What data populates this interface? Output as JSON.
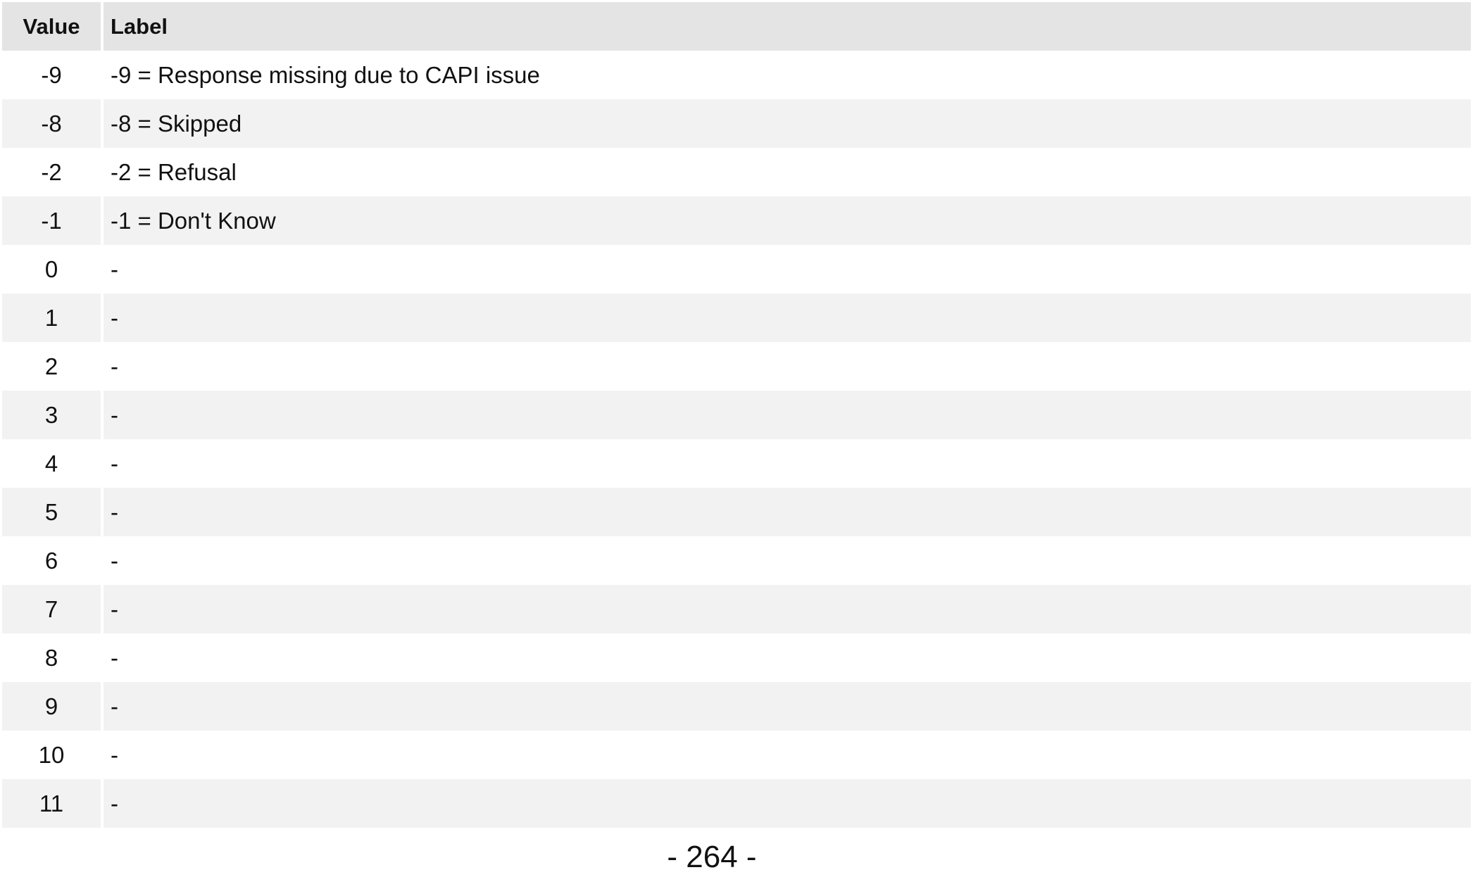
{
  "table": {
    "headers": {
      "value": "Value",
      "label": "Label"
    },
    "rows": [
      {
        "value": "-9",
        "label": "-9 = Response missing due to CAPI issue"
      },
      {
        "value": "-8",
        "label": "-8 = Skipped"
      },
      {
        "value": "-2",
        "label": "-2 = Refusal"
      },
      {
        "value": "-1",
        "label": "-1 = Don't Know"
      },
      {
        "value": "0",
        "label": "-"
      },
      {
        "value": "1",
        "label": "-"
      },
      {
        "value": "2",
        "label": "-"
      },
      {
        "value": "3",
        "label": "-"
      },
      {
        "value": "4",
        "label": "-"
      },
      {
        "value": "5",
        "label": "-"
      },
      {
        "value": "6",
        "label": "-"
      },
      {
        "value": "7",
        "label": "-"
      },
      {
        "value": "8",
        "label": "-"
      },
      {
        "value": "9",
        "label": "-"
      },
      {
        "value": "10",
        "label": "-"
      },
      {
        "value": "11",
        "label": "-"
      }
    ]
  },
  "footer": {
    "page_number": "- 264 -"
  },
  "colors": {
    "header_background": "#e4e4e4",
    "striped_row_background": "#f2f2f2",
    "row_background": "#ffffff",
    "text": "#111111"
  }
}
